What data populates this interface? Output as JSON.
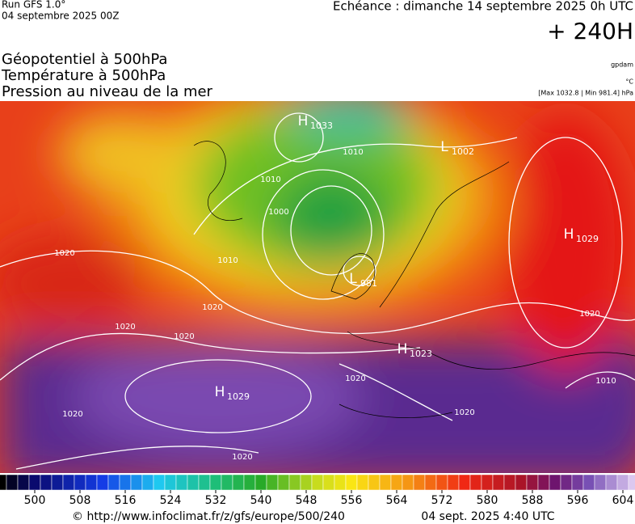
{
  "header": {
    "run": "Run GFS 1.0°",
    "date": "04 septembre 2025 00Z",
    "echeance": "Echéance : dimanche 14 septembre 2025 0h UTC",
    "horizon": "+ 240H"
  },
  "titles": [
    "Géopotentiel à 500hPa",
    "Température à 500hPa",
    "Pression au niveau de la mer"
  ],
  "units": [
    "gpdam",
    "°C",
    "[Max 1032.8 | Min 981.4] hPa"
  ],
  "centres": [
    {
      "kind": "H",
      "value": "1033"
    },
    {
      "kind": "L",
      "value": "1002"
    },
    {
      "kind": "H",
      "value": "1029"
    },
    {
      "kind": "L",
      "value": "981"
    },
    {
      "kind": "H",
      "value": "1023"
    },
    {
      "kind": "H",
      "value": "1029"
    }
  ],
  "isobar_labels": [
    "1020",
    "1020",
    "1020",
    "1020",
    "1010",
    "1010",
    "1010",
    "1000",
    "1020",
    "1020",
    "1020",
    "1020",
    "1010",
    "1020"
  ],
  "colorbar": {
    "ticks": [
      500,
      508,
      516,
      524,
      532,
      540,
      548,
      556,
      564,
      572,
      580,
      588,
      596,
      604
    ]
  },
  "footer": {
    "url": "© http://www.infoclimat.fr/z/gfs/europe/500/240",
    "timestamp": "04 sept. 2025  4:40 UTC"
  }
}
